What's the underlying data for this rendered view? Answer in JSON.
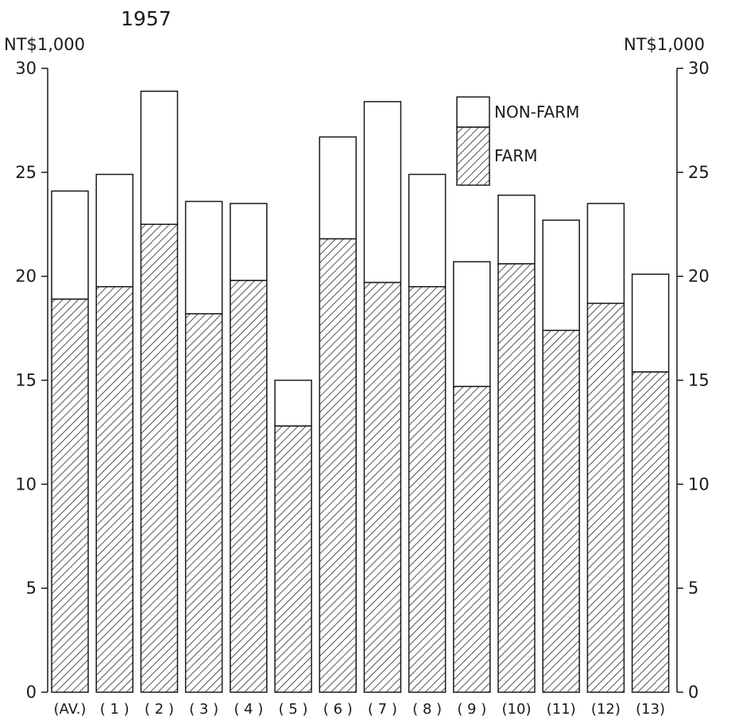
{
  "chart_data": {
    "type": "bar",
    "stacked": true,
    "title": "1957",
    "left_axis_unit": "NT$1,000",
    "right_axis_unit": "NT$1,000",
    "ylim": [
      0,
      30
    ],
    "yticks": [
      "0",
      "5",
      "10",
      "15",
      "20",
      "25",
      "30"
    ],
    "categories": [
      "(AV.)",
      "( 1 )",
      "( 2 )",
      "( 3 )",
      "( 4 )",
      "( 5 )",
      "( 6 )",
      "( 7 )",
      "( 8 )",
      "( 9 )",
      "(10)",
      "(11)",
      "(12)",
      "(13)"
    ],
    "series": [
      {
        "name": "FARM",
        "values": [
          18.9,
          19.5,
          22.5,
          18.2,
          19.8,
          12.8,
          21.8,
          19.7,
          19.5,
          14.7,
          20.6,
          17.4,
          18.7,
          15.4
        ]
      },
      {
        "name": "NON-FARM",
        "values": [
          5.2,
          5.4,
          6.4,
          5.4,
          3.7,
          2.2,
          4.9,
          8.7,
          5.4,
          6.0,
          3.3,
          5.3,
          4.8,
          4.7
        ]
      }
    ],
    "totals": [
      24.1,
      24.9,
      28.9,
      23.6,
      23.5,
      15.0,
      26.7,
      28.4,
      24.9,
      20.7,
      23.9,
      22.7,
      23.5,
      20.1
    ],
    "legend": {
      "position": "top-right",
      "items": [
        "NON-FARM",
        "FARM"
      ]
    },
    "grid": false,
    "colors": {
      "farm_hatch": "#2a2a2a",
      "non_farm_fill": "#ffffff",
      "outline": "#1a1a1a"
    }
  }
}
